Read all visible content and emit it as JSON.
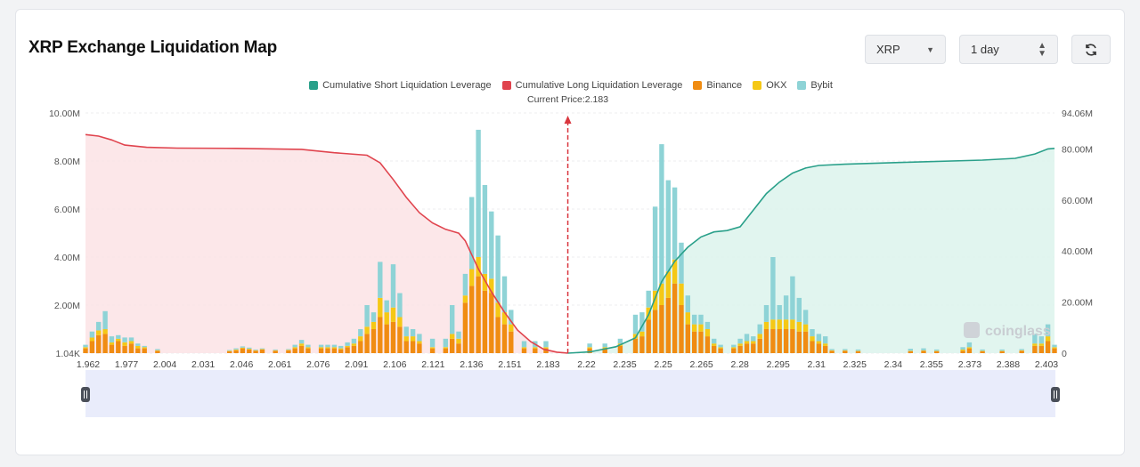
{
  "header": {
    "title": "XRP Exchange Liquidation Map",
    "symbol_select": "XRP",
    "period_select": "1 day"
  },
  "colors": {
    "short": "#2aa08a",
    "long": "#e0444e",
    "binance": "#f08c12",
    "okx": "#f5c816",
    "bybit": "#8ed3d6"
  },
  "watermark": "coinglass",
  "chart_data": {
    "type": "bar",
    "legend": [
      "Cumulative Short Liquidation Leverage",
      "Cumulative Long Liquidation Leverage",
      "Binance",
      "OKX",
      "Bybit"
    ],
    "current_price_label": "Current Price:2.183",
    "current_price": 2.183,
    "x_range": [
      1.962,
      2.406
    ],
    "x_ticks": [
      "1.962",
      "1.977",
      "2.004",
      "2.031",
      "2.046",
      "2.061",
      "2.076",
      "2.091",
      "2.106",
      "2.121",
      "2.136",
      "2.151",
      "2.183",
      "2.22",
      "2.235",
      "2.25",
      "2.265",
      "2.28",
      "2.295",
      "2.31",
      "2.325",
      "2.34",
      "2.355",
      "2.373",
      "2.388",
      "2.403"
    ],
    "y_left_ticks": [
      "10.00M",
      "8.00M",
      "6.00M",
      "4.00M",
      "2.00M",
      "1.04K"
    ],
    "y_right_ticks": [
      "94.06M",
      "80.00M",
      "60.00M",
      "40.00M",
      "20.00M",
      "0"
    ],
    "y_left_max": 10000000,
    "y_right_max": 94060000,
    "bars": [
      {
        "x": 1.962,
        "binance": 0.2,
        "okx": 0.05,
        "bybit": 0.1
      },
      {
        "x": 1.965,
        "binance": 0.5,
        "okx": 0.15,
        "bybit": 0.25
      },
      {
        "x": 1.968,
        "binance": 0.75,
        "okx": 0.2,
        "bybit": 0.35
      },
      {
        "x": 1.971,
        "binance": 0.8,
        "okx": 0.2,
        "bybit": 0.75
      },
      {
        "x": 1.974,
        "binance": 0.35,
        "okx": 0.1,
        "bybit": 0.25
      },
      {
        "x": 1.977,
        "binance": 0.5,
        "okx": 0.1,
        "bybit": 0.15
      },
      {
        "x": 1.98,
        "binance": 0.3,
        "okx": 0.15,
        "bybit": 0.2
      },
      {
        "x": 1.983,
        "binance": 0.4,
        "okx": 0.1,
        "bybit": 0.15
      },
      {
        "x": 1.986,
        "binance": 0.2,
        "okx": 0.1,
        "bybit": 0.1
      },
      {
        "x": 1.989,
        "binance": 0.2,
        "okx": 0.05,
        "bybit": 0.05
      },
      {
        "x": 1.995,
        "binance": 0.1,
        "okx": 0.02,
        "bybit": 0.05
      },
      {
        "x": 2.028,
        "binance": 0.08,
        "okx": 0.02,
        "bybit": 0.03
      },
      {
        "x": 2.031,
        "binance": 0.12,
        "okx": 0.03,
        "bybit": 0.05
      },
      {
        "x": 2.034,
        "binance": 0.2,
        "okx": 0.03,
        "bybit": 0.05
      },
      {
        "x": 2.037,
        "binance": 0.15,
        "okx": 0.03,
        "bybit": 0.05
      },
      {
        "x": 2.04,
        "binance": 0.1,
        "okx": 0.02,
        "bybit": 0.03
      },
      {
        "x": 2.043,
        "binance": 0.15,
        "okx": 0.02,
        "bybit": 0.03
      },
      {
        "x": 2.049,
        "binance": 0.1,
        "okx": 0.02,
        "bybit": 0.03
      },
      {
        "x": 2.055,
        "binance": 0.12,
        "okx": 0.02,
        "bybit": 0.03
      },
      {
        "x": 2.058,
        "binance": 0.2,
        "okx": 0.05,
        "bybit": 0.1
      },
      {
        "x": 2.061,
        "binance": 0.3,
        "okx": 0.1,
        "bybit": 0.15
      },
      {
        "x": 2.064,
        "binance": 0.2,
        "okx": 0.05,
        "bybit": 0.1
      },
      {
        "x": 2.07,
        "binance": 0.2,
        "okx": 0.05,
        "bybit": 0.1
      },
      {
        "x": 2.073,
        "binance": 0.2,
        "okx": 0.05,
        "bybit": 0.1
      },
      {
        "x": 2.076,
        "binance": 0.2,
        "okx": 0.05,
        "bybit": 0.1
      },
      {
        "x": 2.079,
        "binance": 0.15,
        "okx": 0.05,
        "bybit": 0.1
      },
      {
        "x": 2.082,
        "binance": 0.25,
        "okx": 0.05,
        "bybit": 0.15
      },
      {
        "x": 2.085,
        "binance": 0.3,
        "okx": 0.1,
        "bybit": 0.2
      },
      {
        "x": 2.088,
        "binance": 0.5,
        "okx": 0.2,
        "bybit": 0.3
      },
      {
        "x": 2.091,
        "binance": 0.8,
        "okx": 0.3,
        "bybit": 0.9
      },
      {
        "x": 2.094,
        "binance": 1.0,
        "okx": 0.3,
        "bybit": 0.4
      },
      {
        "x": 2.097,
        "binance": 1.5,
        "okx": 0.8,
        "bybit": 1.5
      },
      {
        "x": 2.1,
        "binance": 1.2,
        "okx": 0.5,
        "bybit": 0.5
      },
      {
        "x": 2.103,
        "binance": 1.3,
        "okx": 0.6,
        "bybit": 1.8
      },
      {
        "x": 2.106,
        "binance": 1.1,
        "okx": 0.4,
        "bybit": 1.0
      },
      {
        "x": 2.109,
        "binance": 0.5,
        "okx": 0.2,
        "bybit": 0.4
      },
      {
        "x": 2.112,
        "binance": 0.5,
        "okx": 0.2,
        "bybit": 0.3
      },
      {
        "x": 2.115,
        "binance": 0.4,
        "okx": 0.1,
        "bybit": 0.3
      },
      {
        "x": 2.121,
        "binance": 0.2,
        "okx": 0.05,
        "bybit": 0.35
      },
      {
        "x": 2.127,
        "binance": 0.2,
        "okx": 0.05,
        "bybit": 0.35
      },
      {
        "x": 2.13,
        "binance": 0.6,
        "okx": 0.2,
        "bybit": 1.2
      },
      {
        "x": 2.133,
        "binance": 0.4,
        "okx": 0.2,
        "bybit": 0.3
      },
      {
        "x": 2.136,
        "binance": 2.1,
        "okx": 0.3,
        "bybit": 0.9
      },
      {
        "x": 2.139,
        "binance": 2.8,
        "okx": 0.7,
        "bybit": 3.0
      },
      {
        "x": 2.142,
        "binance": 3.2,
        "okx": 0.8,
        "bybit": 5.3
      },
      {
        "x": 2.145,
        "binance": 2.6,
        "okx": 0.7,
        "bybit": 3.7
      },
      {
        "x": 2.148,
        "binance": 2.5,
        "okx": 0.6,
        "bybit": 2.8
      },
      {
        "x": 2.151,
        "binance": 1.5,
        "okx": 0.6,
        "bybit": 2.8
      },
      {
        "x": 2.154,
        "binance": 1.2,
        "okx": 0.5,
        "bybit": 1.5
      },
      {
        "x": 2.157,
        "binance": 0.9,
        "okx": 0.3,
        "bybit": 0.6
      },
      {
        "x": 2.163,
        "binance": 0.2,
        "okx": 0.05,
        "bybit": 0.25
      },
      {
        "x": 2.168,
        "binance": 0.2,
        "okx": 0.05,
        "bybit": 0.25
      },
      {
        "x": 2.173,
        "binance": 0.2,
        "okx": 0.05,
        "bybit": 0.25
      },
      {
        "x": 2.193,
        "binance": 0.2,
        "okx": 0.05,
        "bybit": 0.15
      },
      {
        "x": 2.2,
        "binance": 0.2,
        "okx": 0.05,
        "bybit": 0.15
      },
      {
        "x": 2.207,
        "binance": 0.3,
        "okx": 0.1,
        "bybit": 0.2
      },
      {
        "x": 2.214,
        "binance": 0.6,
        "okx": 0.2,
        "bybit": 0.8
      },
      {
        "x": 2.217,
        "binance": 0.7,
        "okx": 0.2,
        "bybit": 0.8
      },
      {
        "x": 2.22,
        "binance": 1.4,
        "okx": 0.5,
        "bybit": 0.7
      },
      {
        "x": 2.223,
        "binance": 1.8,
        "okx": 0.8,
        "bybit": 3.5
      },
      {
        "x": 2.226,
        "binance": 2.0,
        "okx": 0.9,
        "bybit": 5.8
      },
      {
        "x": 2.229,
        "binance": 2.3,
        "okx": 1.1,
        "bybit": 3.8
      },
      {
        "x": 2.232,
        "binance": 2.9,
        "okx": 1.0,
        "bybit": 3.0
      },
      {
        "x": 2.235,
        "binance": 2.0,
        "okx": 0.9,
        "bybit": 1.7
      },
      {
        "x": 2.238,
        "binance": 1.2,
        "okx": 0.5,
        "bybit": 0.7
      },
      {
        "x": 2.241,
        "binance": 0.9,
        "okx": 0.3,
        "bybit": 0.4
      },
      {
        "x": 2.244,
        "binance": 0.9,
        "okx": 0.3,
        "bybit": 0.4
      },
      {
        "x": 2.247,
        "binance": 0.7,
        "okx": 0.3,
        "bybit": 0.3
      },
      {
        "x": 2.25,
        "binance": 0.3,
        "okx": 0.1,
        "bybit": 0.2
      },
      {
        "x": 2.253,
        "binance": 0.2,
        "okx": 0.05,
        "bybit": 0.1
      },
      {
        "x": 2.259,
        "binance": 0.2,
        "okx": 0.05,
        "bybit": 0.1
      },
      {
        "x": 2.262,
        "binance": 0.3,
        "okx": 0.1,
        "bybit": 0.2
      },
      {
        "x": 2.265,
        "binance": 0.4,
        "okx": 0.1,
        "bybit": 0.3
      },
      {
        "x": 2.268,
        "binance": 0.4,
        "okx": 0.1,
        "bybit": 0.2
      },
      {
        "x": 2.271,
        "binance": 0.6,
        "okx": 0.2,
        "bybit": 0.4
      },
      {
        "x": 2.274,
        "binance": 1.0,
        "okx": 0.3,
        "bybit": 0.7
      },
      {
        "x": 2.277,
        "binance": 1.0,
        "okx": 0.4,
        "bybit": 2.6
      },
      {
        "x": 2.28,
        "binance": 1.0,
        "okx": 0.4,
        "bybit": 0.6
      },
      {
        "x": 2.283,
        "binance": 1.0,
        "okx": 0.4,
        "bybit": 1.0
      },
      {
        "x": 2.286,
        "binance": 1.0,
        "okx": 0.4,
        "bybit": 1.8
      },
      {
        "x": 2.289,
        "binance": 0.9,
        "okx": 0.4,
        "bybit": 1.0
      },
      {
        "x": 2.292,
        "binance": 0.9,
        "okx": 0.3,
        "bybit": 0.6
      },
      {
        "x": 2.295,
        "binance": 0.5,
        "okx": 0.2,
        "bybit": 0.3
      },
      {
        "x": 2.298,
        "binance": 0.4,
        "okx": 0.1,
        "bybit": 0.3
      },
      {
        "x": 2.301,
        "binance": 0.3,
        "okx": 0.1,
        "bybit": 0.3
      },
      {
        "x": 2.304,
        "binance": 0.1,
        "okx": 0.02,
        "bybit": 0.05
      },
      {
        "x": 2.31,
        "binance": 0.1,
        "okx": 0.02,
        "bybit": 0.05
      },
      {
        "x": 2.316,
        "binance": 0.08,
        "okx": 0.02,
        "bybit": 0.05
      },
      {
        "x": 2.34,
        "binance": 0.08,
        "okx": 0.02,
        "bybit": 0.08
      },
      {
        "x": 2.346,
        "binance": 0.1,
        "okx": 0.02,
        "bybit": 0.08
      },
      {
        "x": 2.352,
        "binance": 0.08,
        "okx": 0.02,
        "bybit": 0.05
      },
      {
        "x": 2.364,
        "binance": 0.1,
        "okx": 0.05,
        "bybit": 0.1
      },
      {
        "x": 2.367,
        "binance": 0.2,
        "okx": 0.05,
        "bybit": 0.2
      },
      {
        "x": 2.373,
        "binance": 0.08,
        "okx": 0.02,
        "bybit": 0.05
      },
      {
        "x": 2.382,
        "binance": 0.08,
        "okx": 0.02,
        "bybit": 0.05
      },
      {
        "x": 2.391,
        "binance": 0.1,
        "okx": 0.02,
        "bybit": 0.05
      },
      {
        "x": 2.397,
        "binance": 0.3,
        "okx": 0.1,
        "bybit": 0.4
      },
      {
        "x": 2.4,
        "binance": 0.3,
        "okx": 0.1,
        "bybit": 0.3
      },
      {
        "x": 2.403,
        "binance": 0.5,
        "okx": 0.2,
        "bybit": 0.5
      },
      {
        "x": 2.406,
        "binance": 0.2,
        "okx": 0.05,
        "bybit": 0.1
      }
    ],
    "bar_units": "M",
    "long_cumulative": [
      [
        1.962,
        85.6
      ],
      [
        1.968,
        85.0
      ],
      [
        1.974,
        83.5
      ],
      [
        1.98,
        81.5
      ],
      [
        1.99,
        80.6
      ],
      [
        2.004,
        80.3
      ],
      [
        2.031,
        80.2
      ],
      [
        2.061,
        79.8
      ],
      [
        2.076,
        78.5
      ],
      [
        2.091,
        77.5
      ],
      [
        2.097,
        74.5
      ],
      [
        2.103,
        68.0
      ],
      [
        2.109,
        61.0
      ],
      [
        2.115,
        55.0
      ],
      [
        2.121,
        51.0
      ],
      [
        2.127,
        48.5
      ],
      [
        2.133,
        47.0
      ],
      [
        2.136,
        44.0
      ],
      [
        2.142,
        33.0
      ],
      [
        2.148,
        24.0
      ],
      [
        2.154,
        16.0
      ],
      [
        2.16,
        9.0
      ],
      [
        2.166,
        4.5
      ],
      [
        2.172,
        1.5
      ],
      [
        2.178,
        0.4
      ],
      [
        2.183,
        0
      ]
    ],
    "short_cumulative": [
      [
        2.183,
        0
      ],
      [
        2.193,
        0.5
      ],
      [
        2.205,
        2.5
      ],
      [
        2.214,
        6.0
      ],
      [
        2.22,
        15.0
      ],
      [
        2.226,
        28.0
      ],
      [
        2.232,
        36.0
      ],
      [
        2.238,
        41.5
      ],
      [
        2.244,
        45.5
      ],
      [
        2.25,
        47.5
      ],
      [
        2.256,
        48.0
      ],
      [
        2.262,
        49.5
      ],
      [
        2.268,
        56.0
      ],
      [
        2.274,
        62.5
      ],
      [
        2.28,
        67.0
      ],
      [
        2.286,
        70.5
      ],
      [
        2.292,
        72.5
      ],
      [
        2.298,
        73.5
      ],
      [
        2.31,
        74.0
      ],
      [
        2.34,
        74.8
      ],
      [
        2.373,
        75.6
      ],
      [
        2.388,
        76.3
      ],
      [
        2.397,
        78.0
      ],
      [
        2.403,
        80.0
      ],
      [
        2.406,
        80.2
      ]
    ],
    "right_axis_units": "M"
  }
}
